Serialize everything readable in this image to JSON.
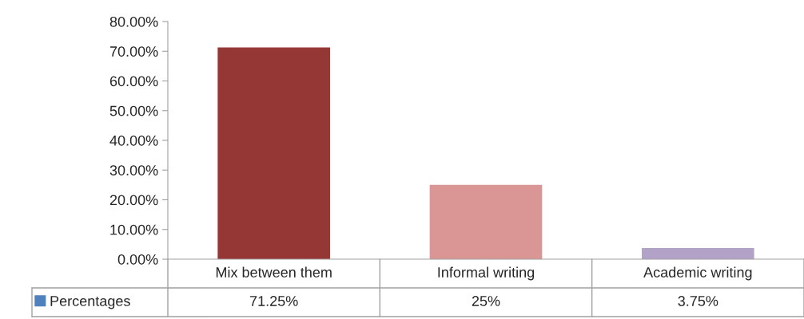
{
  "chart_data": {
    "type": "bar",
    "categories": [
      "Mix between them",
      "Informal writing",
      "Academic writing"
    ],
    "series": [
      {
        "name": "Percentages",
        "color": "#4f81bd",
        "colors": [
          "#953735",
          "#d99694",
          "#b3a2c7"
        ],
        "values": [
          71.25,
          25,
          3.75
        ],
        "value_labels": [
          "71.25%",
          "25%",
          "3.75%"
        ]
      }
    ],
    "ylim": [
      0,
      80
    ],
    "yticks": [
      {
        "value": 0,
        "label": "0.00%"
      },
      {
        "value": 10,
        "label": "10.00%"
      },
      {
        "value": 20,
        "label": "20.00%"
      },
      {
        "value": 30,
        "label": "30.00%"
      },
      {
        "value": 40,
        "label": "40.00%"
      },
      {
        "value": 50,
        "label": "50.00%"
      },
      {
        "value": 60,
        "label": "60.00%"
      },
      {
        "value": 70,
        "label": "70.00%"
      },
      {
        "value": 80,
        "label": "80.00%"
      }
    ],
    "grid": false,
    "legend": "bottom left"
  }
}
